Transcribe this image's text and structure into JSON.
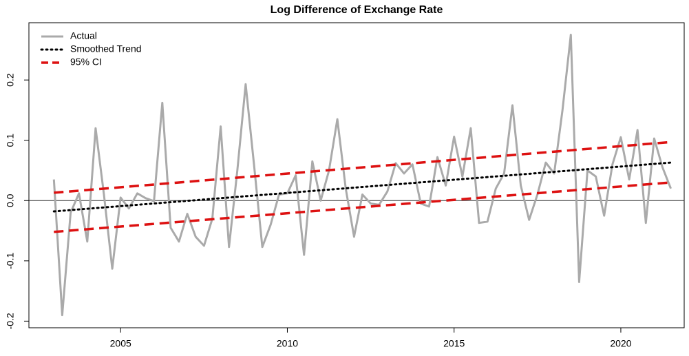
{
  "chart_data": {
    "type": "line",
    "title": "Log Difference of Exchange Rate",
    "xlim": [
      2002.25,
      2021.9
    ],
    "ylim": [
      -0.211,
      0.295
    ],
    "xticks": [
      2005,
      2010,
      2015,
      2020
    ],
    "yticks": [
      -0.2,
      -0.1,
      {
        "value": 0,
        "label": "0.0"
      },
      0.1,
      0.2
    ],
    "hline": 0,
    "legend": "top-left",
    "series": [
      {
        "name": "Actual",
        "color": "#aaaaaa",
        "x": [
          2003.0,
          2003.25,
          2003.5,
          2003.75,
          2004.0,
          2004.25,
          2004.5,
          2004.75,
          2005.0,
          2005.25,
          2005.5,
          2005.75,
          2006.0,
          2006.25,
          2006.5,
          2006.75,
          2007.0,
          2007.25,
          2007.5,
          2007.75,
          2008.0,
          2008.25,
          2008.5,
          2008.75,
          2009.0,
          2009.25,
          2009.5,
          2009.75,
          2010.0,
          2010.25,
          2010.5,
          2010.75,
          2011.0,
          2011.25,
          2011.5,
          2011.75,
          2012.0,
          2012.25,
          2012.5,
          2012.75,
          2013.0,
          2013.25,
          2013.5,
          2013.75,
          2014.0,
          2014.25,
          2014.5,
          2014.75,
          2015.0,
          2015.25,
          2015.5,
          2015.75,
          2016.0,
          2016.25,
          2016.5,
          2016.75,
          2017.0,
          2017.25,
          2017.5,
          2017.75,
          2018.0,
          2018.25,
          2018.5,
          2018.75,
          2019.0,
          2019.25,
          2019.5,
          2019.75,
          2020.0,
          2020.25,
          2020.5,
          2020.75,
          2021.0,
          2021.25,
          2021.5
        ],
        "values": [
          0.035,
          -0.19,
          -0.02,
          0.012,
          -0.068,
          0.12,
          0.01,
          -0.113,
          0.005,
          -0.013,
          0.012,
          0.004,
          -0.001,
          0.162,
          -0.045,
          -0.068,
          -0.022,
          -0.06,
          -0.075,
          -0.03,
          0.123,
          -0.077,
          0.05,
          0.193,
          0.06,
          -0.077,
          -0.04,
          0.01,
          0.012,
          0.042,
          -0.09,
          0.065,
          0.0,
          0.05,
          0.135,
          0.02,
          -0.06,
          0.01,
          -0.005,
          -0.007,
          0.015,
          0.062,
          0.045,
          0.06,
          -0.005,
          -0.01,
          0.072,
          0.025,
          0.106,
          0.04,
          0.12,
          -0.037,
          -0.035,
          0.02,
          0.045,
          0.158,
          0.025,
          -0.032,
          0.01,
          0.063,
          0.045,
          0.15,
          0.275,
          -0.135,
          0.05,
          0.04,
          -0.025,
          0.06,
          0.105,
          0.035,
          0.117,
          -0.037,
          0.103,
          0.055,
          0.02
        ]
      },
      {
        "name": "Smoothed Trend",
        "color": "#000000",
        "x": [
          2003.0,
          2021.5
        ],
        "values": [
          -0.018,
          0.063
        ]
      },
      {
        "name": "95% CI",
        "color": "#dd1111",
        "x": [
          2003.0,
          2021.5
        ],
        "lower": [
          -0.052,
          0.03
        ],
        "upper": [
          0.013,
          0.097
        ]
      }
    ]
  }
}
